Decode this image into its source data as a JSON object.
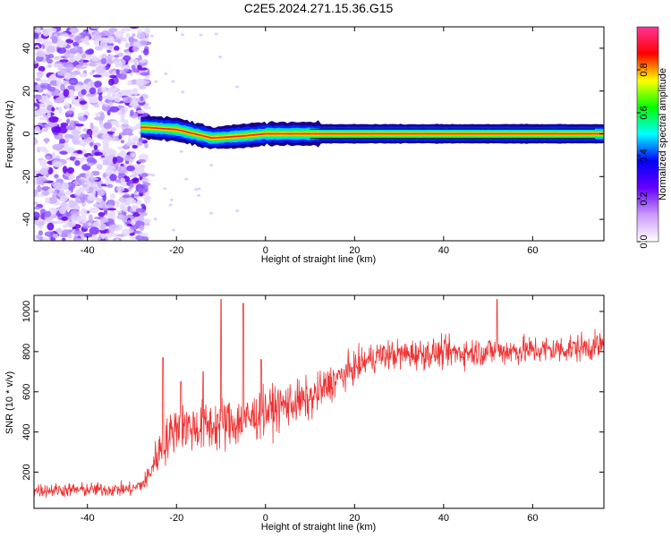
{
  "title": "C2E5.2024.271.15.36.G15",
  "chart_data": [
    {
      "type": "heatmap",
      "xlabel": "Height of straight line (km)",
      "ylabel": "Frequency (Hz)",
      "xlim": [
        -52,
        76
      ],
      "ylim": [
        -50,
        50
      ],
      "xticks": [
        -40,
        -20,
        0,
        20,
        40,
        60
      ],
      "yticks": [
        -40,
        -20,
        0,
        20,
        40
      ],
      "colorbar": {
        "label": "Normalized spectral amplitude",
        "range": [
          0,
          1
        ],
        "ticks": [
          "0.0",
          "0.2",
          "0.4",
          "0.6",
          "0.8"
        ],
        "tick_values": [
          0,
          0.2,
          0.4,
          0.6,
          0.8
        ],
        "colors": [
          "#ffffff",
          "#cc99ff",
          "#6600ff",
          "#0000ff",
          "#00ffff",
          "#00ff00",
          "#ffff00",
          "#ff0000",
          "#ff3399"
        ]
      },
      "features": {
        "noise_region_x": [
          -52,
          -27
        ],
        "signal_start_x": -28,
        "signal_center_hz": [
          {
            "x": -27,
            "y": 3
          },
          {
            "x": -20,
            "y": 2
          },
          {
            "x": -12,
            "y": -2
          },
          {
            "x": -5,
            "y": -1
          },
          {
            "x": 0,
            "y": 0
          },
          {
            "x": 10,
            "y": 0
          },
          {
            "x": 75,
            "y": 0
          }
        ]
      }
    },
    {
      "type": "line",
      "xlabel": "Height of straight line (km)",
      "ylabel": "SNR (10 * v/v)",
      "xlim": [
        -52,
        76
      ],
      "ylim": [
        20,
        1080
      ],
      "xticks": [
        -40,
        -20,
        0,
        20,
        40,
        60
      ],
      "yticks": [
        200,
        400,
        600,
        800,
        1000
      ],
      "color": "#ee3333",
      "trend": [
        {
          "x": -52,
          "y": 110
        },
        {
          "x": -30,
          "y": 115
        },
        {
          "x": -27,
          "y": 150
        },
        {
          "x": -24,
          "y": 300
        },
        {
          "x": -20,
          "y": 430
        },
        {
          "x": -15,
          "y": 420
        },
        {
          "x": -10,
          "y": 440
        },
        {
          "x": -5,
          "y": 450
        },
        {
          "x": 0,
          "y": 500
        },
        {
          "x": 5,
          "y": 540
        },
        {
          "x": 10,
          "y": 560
        },
        {
          "x": 15,
          "y": 650
        },
        {
          "x": 20,
          "y": 720
        },
        {
          "x": 25,
          "y": 780
        },
        {
          "x": 35,
          "y": 790
        },
        {
          "x": 50,
          "y": 800
        },
        {
          "x": 65,
          "y": 810
        },
        {
          "x": 76,
          "y": 830
        }
      ],
      "spread": [
        {
          "x": -52,
          "y": 60
        },
        {
          "x": -28,
          "y": 60
        },
        {
          "x": -24,
          "y": 180
        },
        {
          "x": -10,
          "y": 230
        },
        {
          "x": 0,
          "y": 200
        },
        {
          "x": 12,
          "y": 170
        },
        {
          "x": 20,
          "y": 130
        },
        {
          "x": 76,
          "y": 120
        }
      ],
      "peaks": [
        {
          "x": -23,
          "y": 770
        },
        {
          "x": -19,
          "y": 650
        },
        {
          "x": -14,
          "y": 700
        },
        {
          "x": -10,
          "y": 1060
        },
        {
          "x": -5,
          "y": 1040
        },
        {
          "x": -1,
          "y": 760
        },
        {
          "x": 52,
          "y": 1060
        }
      ]
    }
  ]
}
